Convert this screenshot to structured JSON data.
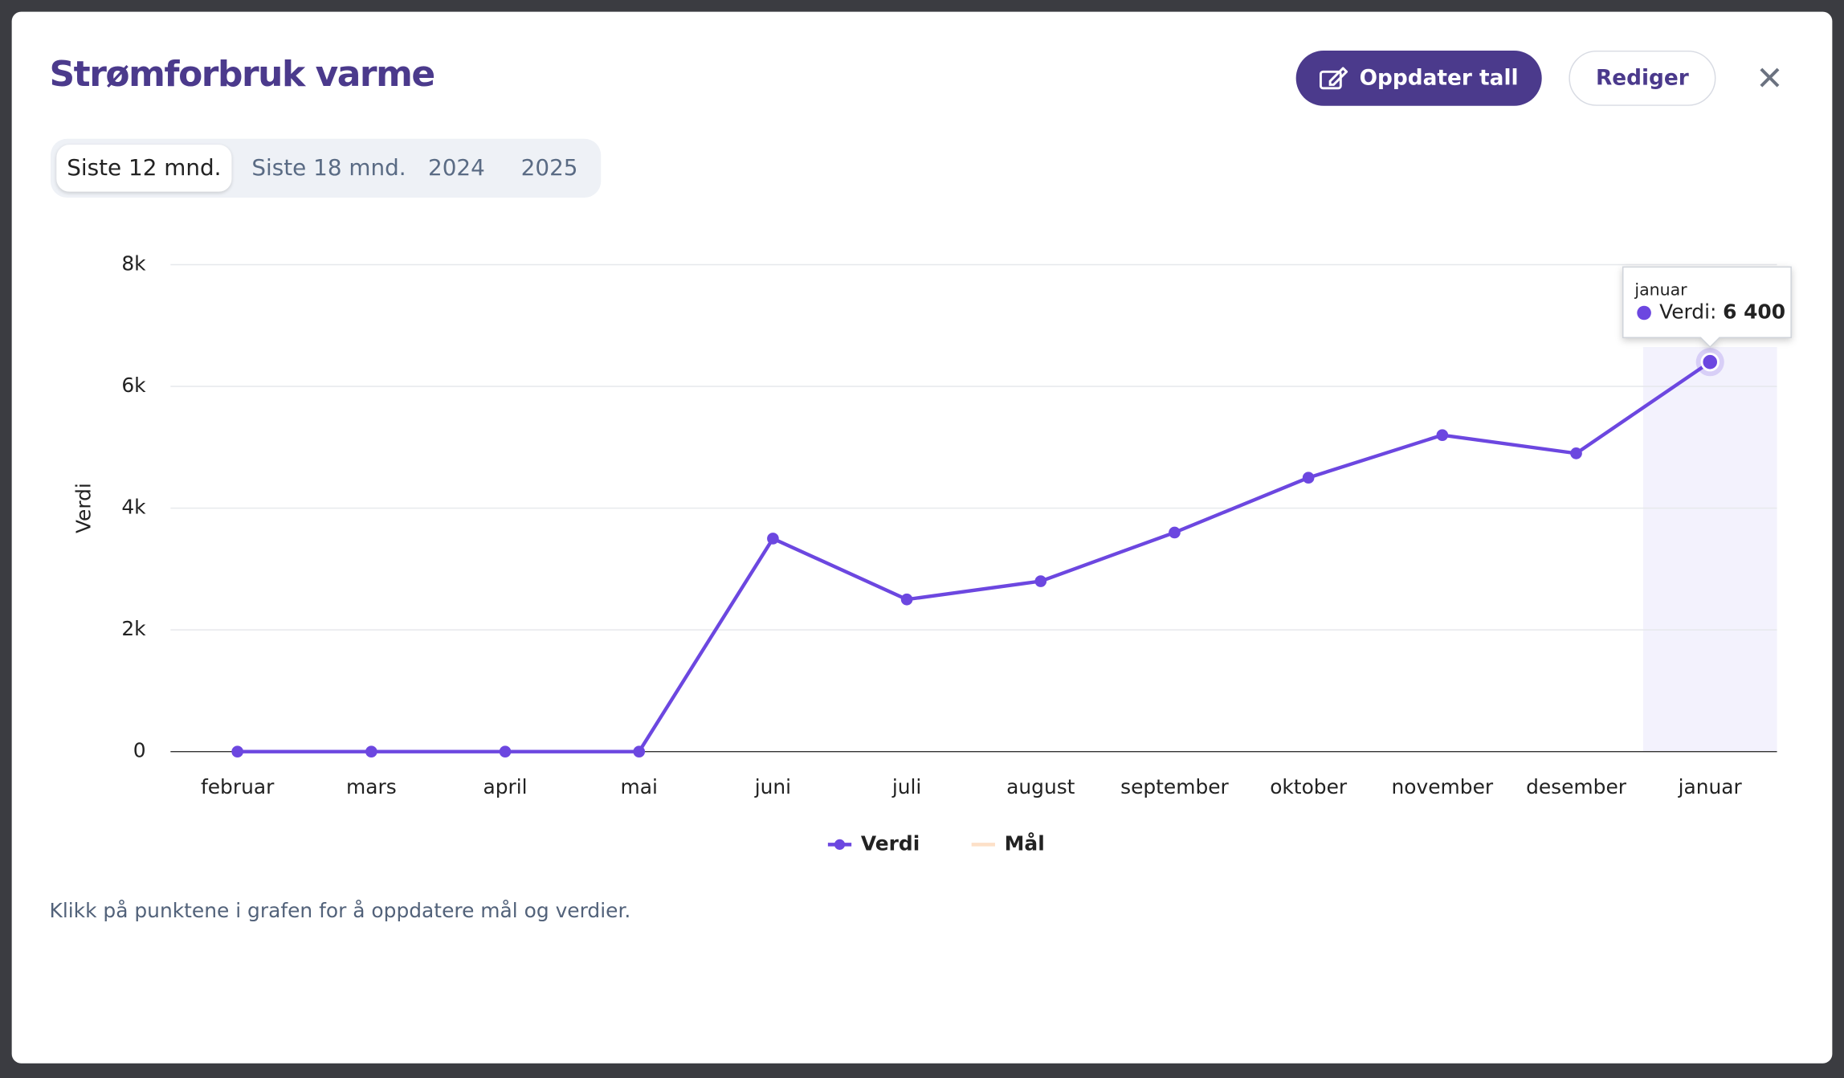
{
  "header": {
    "title": "Strømforbruk varme",
    "buttons": [
      "Oppdater tall",
      "Rediger"
    ]
  },
  "tabs": {
    "items": [
      "Siste 12 mnd.",
      "Siste 18 mnd.",
      "2024",
      "2025"
    ],
    "active": 0
  },
  "chart_data": {
    "type": "line",
    "categories": [
      "februar",
      "mars",
      "april",
      "mai",
      "juni",
      "juli",
      "august",
      "september",
      "oktober",
      "november",
      "desember",
      "januar"
    ],
    "series": [
      {
        "name": "Verdi",
        "color": "#6c47e0",
        "values": [
          0,
          0,
          0,
          0,
          3500,
          2500,
          2800,
          3600,
          4500,
          5200,
          4900,
          6400
        ],
        "value_labels": [
          null,
          null,
          null,
          null,
          null,
          null,
          null,
          null,
          null,
          null,
          null,
          "6 400"
        ]
      },
      {
        "name": "Mål",
        "color": "#fde0c8",
        "values": [
          null,
          null,
          null,
          null,
          null,
          null,
          null,
          null,
          null,
          null,
          null,
          null
        ]
      }
    ],
    "y_label": "Verdi",
    "ylim": [
      0,
      8000
    ],
    "yticks": [
      0,
      {
        "value": 2000,
        "label": "2k"
      },
      {
        "value": 4000,
        "label": "4k"
      },
      {
        "value": 6000,
        "label": "6k"
      },
      {
        "value": 8000,
        "label": "8k"
      }
    ],
    "grid": true,
    "legend": "bottom",
    "highlight": 11
  },
  "footnote": "Klikk på punktene i grafen for å oppdatere mål og verdier."
}
